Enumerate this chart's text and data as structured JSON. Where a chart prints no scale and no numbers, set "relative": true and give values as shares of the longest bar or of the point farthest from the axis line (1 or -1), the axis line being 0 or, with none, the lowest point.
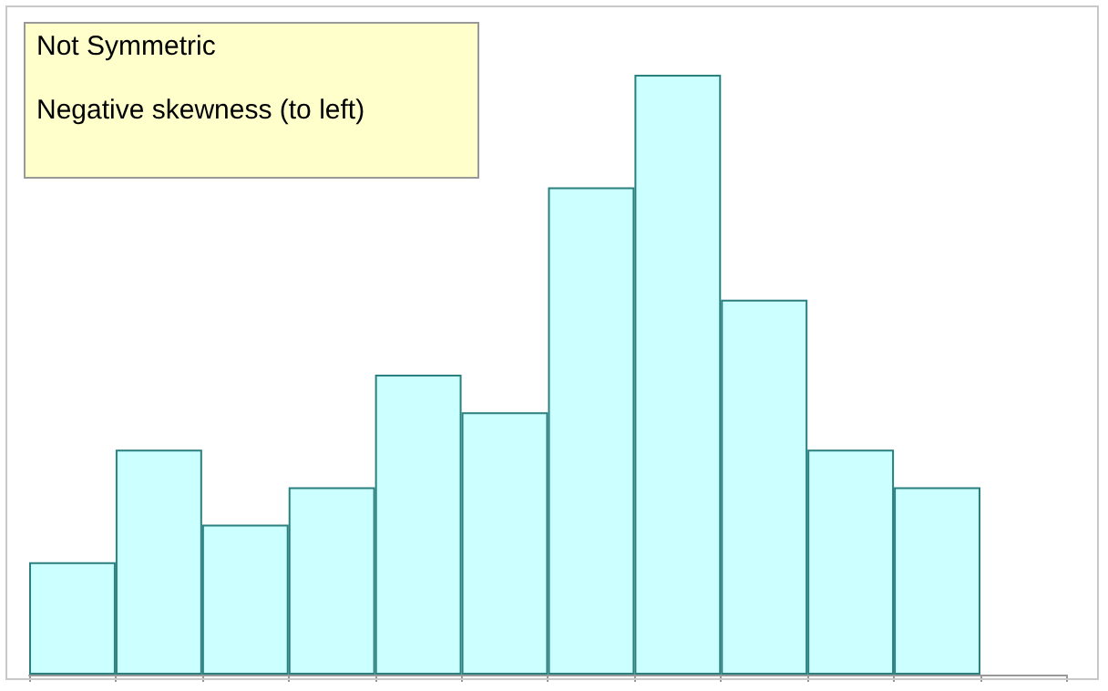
{
  "chart_data": {
    "type": "bar",
    "relative": true,
    "categories": [
      null,
      null,
      null,
      null,
      null,
      null,
      null,
      null,
      null,
      null,
      null
    ],
    "values": [
      0.1875,
      0.375,
      0.25,
      0.3125,
      0.5,
      0.4375,
      0.8125,
      1,
      0.625,
      0.375,
      0.3125
    ],
    "color": "#ccffff",
    "annotations": [
      "Not Symmetric",
      "Negative skewness (to left)"
    ],
    "grid": false
  }
}
